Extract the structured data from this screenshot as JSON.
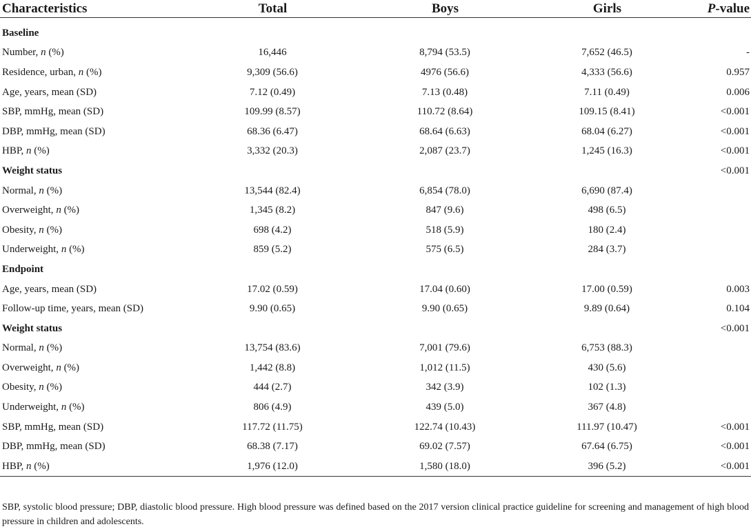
{
  "table": {
    "headers": [
      "Characteristics",
      "Total",
      "Boys",
      "Girls",
      "P-value"
    ],
    "rows": [
      {
        "type": "section",
        "label": "Baseline",
        "total": "",
        "boys": "",
        "girls": "",
        "p": ""
      },
      {
        "type": "data",
        "label_pre": "Number, ",
        "label_em": "n",
        "label_post": " (%)",
        "total": "16,446",
        "boys": "8,794 (53.5)",
        "girls": "7,652 (46.5)",
        "p": "-"
      },
      {
        "type": "data",
        "label_pre": "Residence, urban, ",
        "label_em": "n",
        "label_post": " (%)",
        "total": "9,309 (56.6)",
        "boys": "4976 (56.6)",
        "girls": "4,333 (56.6)",
        "p": "0.957"
      },
      {
        "type": "data",
        "label_pre": "Age, years, mean (SD)",
        "label_em": "",
        "label_post": "",
        "total": "7.12 (0.49)",
        "boys": "7.13 (0.48)",
        "girls": "7.11 (0.49)",
        "p": "0.006"
      },
      {
        "type": "data",
        "label_pre": "SBP, mmHg, mean (SD)",
        "label_em": "",
        "label_post": "",
        "total": "109.99 (8.57)",
        "boys": "110.72 (8.64)",
        "girls": "109.15 (8.41)",
        "p": "<0.001"
      },
      {
        "type": "data",
        "label_pre": "DBP, mmHg, mean (SD)",
        "label_em": "",
        "label_post": "",
        "total": "68.36 (6.47)",
        "boys": "68.64 (6.63)",
        "girls": "68.04 (6.27)",
        "p": "<0.001"
      },
      {
        "type": "data",
        "label_pre": "HBP, ",
        "label_em": "n",
        "label_post": " (%)",
        "total": "3,332 (20.3)",
        "boys": "2,087 (23.7)",
        "girls": "1,245 (16.3)",
        "p": "<0.001"
      },
      {
        "type": "section",
        "label": "Weight status",
        "total": "",
        "boys": "",
        "girls": "",
        "p": "<0.001"
      },
      {
        "type": "data",
        "label_pre": "Normal, ",
        "label_em": "n",
        "label_post": " (%)",
        "total": "13,544 (82.4)",
        "boys": "6,854 (78.0)",
        "girls": "6,690 (87.4)",
        "p": ""
      },
      {
        "type": "data",
        "label_pre": "Overweight, ",
        "label_em": "n",
        "label_post": " (%)",
        "total": "1,345 (8.2)",
        "boys": "847 (9.6)",
        "girls": "498 (6.5)",
        "p": ""
      },
      {
        "type": "data",
        "label_pre": "Obesity, ",
        "label_em": "n",
        "label_post": " (%)",
        "total": "698 (4.2)",
        "boys": "518 (5.9)",
        "girls": "180 (2.4)",
        "p": ""
      },
      {
        "type": "data",
        "label_pre": "Underweight, ",
        "label_em": "n",
        "label_post": " (%)",
        "total": "859 (5.2)",
        "boys": "575 (6.5)",
        "girls": "284 (3.7)",
        "p": ""
      },
      {
        "type": "section",
        "label": "Endpoint",
        "total": "",
        "boys": "",
        "girls": "",
        "p": ""
      },
      {
        "type": "data",
        "label_pre": "Age, years, mean (SD)",
        "label_em": "",
        "label_post": "",
        "total": "17.02 (0.59)",
        "boys": "17.04 (0.60)",
        "girls": "17.00 (0.59)",
        "p": "0.003"
      },
      {
        "type": "data",
        "label_pre": "Follow-up time, years, mean (SD)",
        "label_em": "",
        "label_post": "",
        "total": "9.90 (0.65)",
        "boys": "9.90 (0.65)",
        "girls": "9.89 (0.64)",
        "p": "0.104"
      },
      {
        "type": "section",
        "label": "Weight status",
        "total": "",
        "boys": "",
        "girls": "",
        "p": "<0.001"
      },
      {
        "type": "data",
        "label_pre": "Normal, ",
        "label_em": "n",
        "label_post": " (%)",
        "total": "13,754 (83.6)",
        "boys": "7,001 (79.6)",
        "girls": "6,753 (88.3)",
        "p": ""
      },
      {
        "type": "data",
        "label_pre": "Overweight, ",
        "label_em": "n",
        "label_post": " (%)",
        "total": "1,442 (8.8)",
        "boys": "1,012 (11.5)",
        "girls": "430 (5.6)",
        "p": ""
      },
      {
        "type": "data",
        "label_pre": "Obesity, ",
        "label_em": "n",
        "label_post": " (%)",
        "total": "444 (2.7)",
        "boys": "342 (3.9)",
        "girls": "102 (1.3)",
        "p": ""
      },
      {
        "type": "data",
        "label_pre": "Underweight, ",
        "label_em": "n",
        "label_post": " (%)",
        "total": "806 (4.9)",
        "boys": "439 (5.0)",
        "girls": "367 (4.8)",
        "p": ""
      },
      {
        "type": "data",
        "label_pre": "SBP, mmHg, mean (SD)",
        "label_em": "",
        "label_post": "",
        "total": "117.72 (11.75)",
        "boys": "122.74 (10.43)",
        "girls": "111.97 (10.47)",
        "p": "<0.001"
      },
      {
        "type": "data",
        "label_pre": "DBP, mmHg, mean (SD)",
        "label_em": "",
        "label_post": "",
        "total": "68.38 (7.17)",
        "boys": "69.02 (7.57)",
        "girls": "67.64 (6.75)",
        "p": "<0.001"
      },
      {
        "type": "data",
        "label_pre": "HBP, ",
        "label_em": "n",
        "label_post": " (%)",
        "total": "1,976 (12.0)",
        "boys": "1,580 (18.0)",
        "girls": "396 (5.2)",
        "p": "<0.001"
      }
    ]
  },
  "footnote": "SBP, systolic blood pressure; DBP, diastolic blood pressure. High blood pressure was defined based on the 2017 version clinical practice guideline for screening and management of high blood pressure in children and adolescents."
}
